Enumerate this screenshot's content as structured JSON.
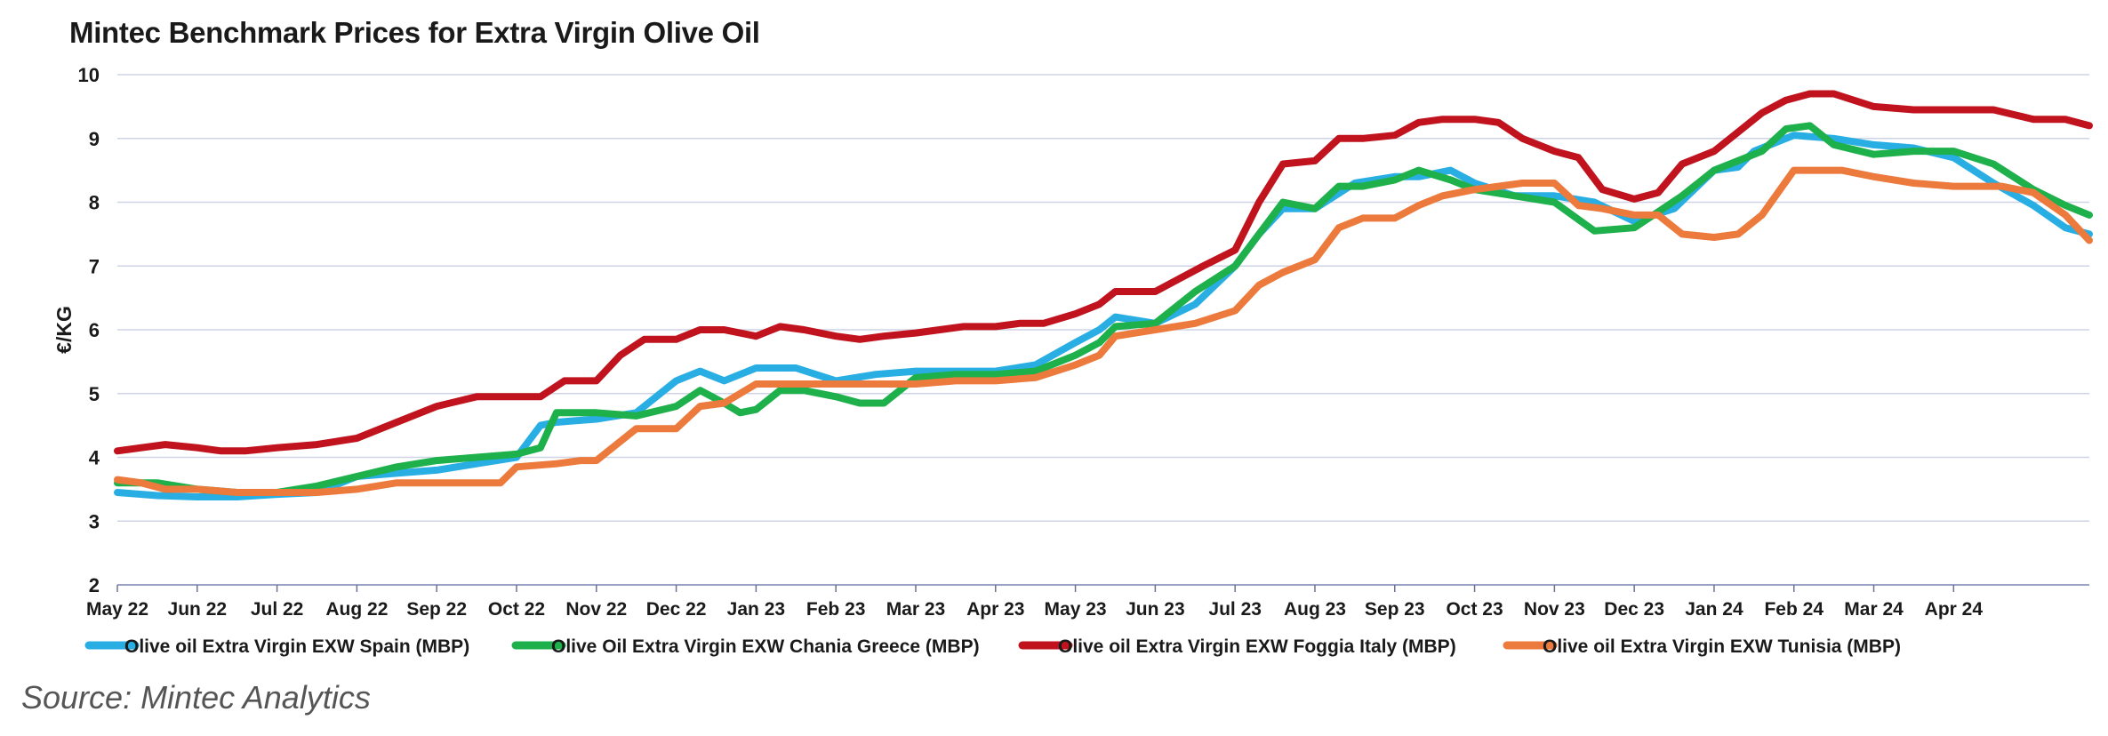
{
  "chart_data": {
    "type": "line",
    "title": "Mintec Benchmark Prices for Extra Virgin Olive Oil",
    "ylabel": "€/KG",
    "xlabel": "",
    "ylim": [
      2,
      10
    ],
    "yticks": [
      2,
      3,
      4,
      5,
      6,
      7,
      8,
      9,
      10
    ],
    "x_ticks": [
      "May 22",
      "Jun 22",
      "Jul 22",
      "Aug 22",
      "Sep 22",
      "Oct 22",
      "Nov 22",
      "Dec 22",
      "Jan 23",
      "Feb 23",
      "Mar 23",
      "Apr 23",
      "May 23",
      "Jun 23",
      "Jul 23",
      "Aug 23",
      "Sep 23",
      "Oct 23",
      "Nov 23",
      "Dec 23",
      "Jan 24",
      "Feb 24",
      "Mar 24",
      "Apr 24"
    ],
    "x_range": [
      0,
      24.7
    ],
    "grid": true,
    "legend_position": "bottom",
    "series": [
      {
        "name": "Olive oil Extra Virgin EXW Spain (MBP)",
        "color": "#29aee3",
        "x": [
          0,
          0.5,
          1,
          1.5,
          2,
          2.5,
          3,
          3.5,
          4,
          4.5,
          5,
          5.3,
          5.5,
          6,
          6.5,
          7,
          7.3,
          7.6,
          8,
          8.5,
          9,
          9.5,
          10,
          10.5,
          11,
          11.5,
          12,
          12.3,
          12.5,
          13,
          13.5,
          14,
          14.3,
          14.6,
          15,
          15.5,
          16,
          16.3,
          16.7,
          17,
          17.5,
          18,
          18.5,
          19,
          19.5,
          20,
          20.3,
          20.5,
          21,
          21.5,
          22,
          22.5,
          23,
          23.5,
          24,
          24.4,
          24.7
        ],
        "y": [
          3.45,
          3.4,
          3.38,
          3.38,
          3.42,
          3.45,
          3.7,
          3.75,
          3.8,
          3.9,
          4.0,
          4.5,
          4.55,
          4.6,
          4.7,
          5.2,
          5.35,
          5.2,
          5.4,
          5.4,
          5.2,
          5.3,
          5.35,
          5.35,
          5.35,
          5.45,
          5.8,
          6.0,
          6.2,
          6.1,
          6.4,
          7.0,
          7.5,
          7.9,
          7.9,
          8.3,
          8.4,
          8.4,
          8.5,
          8.3,
          8.1,
          8.1,
          8.0,
          7.7,
          7.9,
          8.5,
          8.55,
          8.8,
          9.05,
          9.0,
          8.9,
          8.85,
          8.7,
          8.3,
          7.95,
          7.6,
          7.5
        ]
      },
      {
        "name": "Olive Oil Extra Virgin EXW Chania Greece (MBP)",
        "color": "#1db04b",
        "x": [
          0,
          0.5,
          1,
          1.5,
          2,
          2.5,
          3,
          3.5,
          4,
          4.5,
          5,
          5.3,
          5.5,
          6,
          6.5,
          7,
          7.3,
          7.6,
          7.8,
          8,
          8.3,
          8.6,
          9,
          9.3,
          9.6,
          10,
          10.5,
          11,
          11.5,
          12,
          12.3,
          12.5,
          13,
          13.5,
          14,
          14.3,
          14.6,
          15,
          15.3,
          15.6,
          16,
          16.3,
          16.7,
          17,
          17.5,
          18,
          18.5,
          19,
          19.3,
          19.6,
          20,
          20.3,
          20.6,
          20.9,
          21.2,
          21.5,
          22,
          22.5,
          23,
          23.5,
          24,
          24.4,
          24.7
        ],
        "y": [
          3.6,
          3.6,
          3.5,
          3.45,
          3.45,
          3.55,
          3.7,
          3.85,
          3.95,
          4.0,
          4.05,
          4.15,
          4.7,
          4.7,
          4.65,
          4.8,
          5.05,
          4.85,
          4.7,
          4.75,
          5.05,
          5.05,
          4.95,
          4.85,
          4.85,
          5.25,
          5.3,
          5.3,
          5.35,
          5.6,
          5.8,
          6.05,
          6.1,
          6.6,
          7.0,
          7.5,
          8.0,
          7.9,
          8.25,
          8.25,
          8.35,
          8.5,
          8.35,
          8.2,
          8.1,
          8.0,
          7.55,
          7.6,
          7.85,
          8.1,
          8.5,
          8.65,
          8.8,
          9.15,
          9.2,
          8.9,
          8.75,
          8.8,
          8.8,
          8.6,
          8.2,
          7.95,
          7.8
        ]
      },
      {
        "name": "Olive oil Extra Virgin EXW Foggia Italy (MBP)",
        "color": "#c0131e",
        "x": [
          0,
          0.3,
          0.6,
          1,
          1.3,
          1.6,
          2,
          2.5,
          3,
          3.5,
          4,
          4.5,
          5,
          5.3,
          5.6,
          6,
          6.3,
          6.6,
          7,
          7.3,
          7.6,
          8,
          8.3,
          8.6,
          9,
          9.3,
          9.6,
          10,
          10.3,
          10.6,
          11,
          11.3,
          11.6,
          12,
          12.3,
          12.5,
          12.8,
          13,
          13.3,
          13.6,
          14,
          14.3,
          14.6,
          15,
          15.3,
          15.6,
          16,
          16.3,
          16.6,
          17,
          17.3,
          17.6,
          18,
          18.3,
          18.6,
          19,
          19.3,
          19.6,
          20,
          20.3,
          20.6,
          20.9,
          21.2,
          21.5,
          22,
          22.5,
          23,
          23.5,
          24,
          24.4,
          24.7
        ],
        "y": [
          4.1,
          4.15,
          4.2,
          4.15,
          4.1,
          4.1,
          4.15,
          4.2,
          4.3,
          4.55,
          4.8,
          4.95,
          4.95,
          4.95,
          5.2,
          5.2,
          5.6,
          5.85,
          5.85,
          6.0,
          6.0,
          5.9,
          6.05,
          6.0,
          5.9,
          5.85,
          5.9,
          5.95,
          6.0,
          6.05,
          6.05,
          6.1,
          6.1,
          6.25,
          6.4,
          6.6,
          6.6,
          6.6,
          6.8,
          7.0,
          7.25,
          8.0,
          8.6,
          8.65,
          9.0,
          9.0,
          9.05,
          9.25,
          9.3,
          9.3,
          9.25,
          9.0,
          8.8,
          8.7,
          8.2,
          8.05,
          8.15,
          8.6,
          8.8,
          9.1,
          9.4,
          9.6,
          9.7,
          9.7,
          9.5,
          9.45,
          9.45,
          9.45,
          9.3,
          9.3,
          9.2
        ]
      },
      {
        "name": "Olive oil Extra Virgin EXW Tunisia (MBP)",
        "color": "#ec7a3c",
        "x": [
          0,
          0.3,
          0.6,
          1,
          1.5,
          2,
          2.5,
          3,
          3.5,
          4,
          4.5,
          4.8,
          5,
          5.5,
          5.8,
          6,
          6.5,
          7,
          7.3,
          7.6,
          8,
          8.5,
          9,
          9.5,
          10,
          10.5,
          11,
          11.5,
          12,
          12.3,
          12.5,
          13,
          13.5,
          14,
          14.3,
          14.6,
          15,
          15.3,
          15.6,
          16,
          16.3,
          16.6,
          17,
          17.3,
          17.6,
          18,
          18.3,
          18.6,
          19,
          19.3,
          19.6,
          20,
          20.3,
          20.6,
          21,
          21.3,
          21.6,
          22,
          22.5,
          23,
          23.3,
          23.6,
          24,
          24.4,
          24.7
        ],
        "y": [
          3.65,
          3.6,
          3.5,
          3.5,
          3.45,
          3.45,
          3.45,
          3.5,
          3.6,
          3.6,
          3.6,
          3.6,
          3.85,
          3.9,
          3.95,
          3.95,
          4.45,
          4.45,
          4.8,
          4.85,
          5.15,
          5.15,
          5.15,
          5.15,
          5.15,
          5.2,
          5.2,
          5.25,
          5.45,
          5.6,
          5.9,
          6.0,
          6.1,
          6.3,
          6.7,
          6.9,
          7.1,
          7.6,
          7.75,
          7.75,
          7.95,
          8.1,
          8.2,
          8.25,
          8.3,
          8.3,
          7.95,
          7.9,
          7.8,
          7.8,
          7.5,
          7.45,
          7.5,
          7.8,
          8.5,
          8.5,
          8.5,
          8.4,
          8.3,
          8.25,
          8.25,
          8.25,
          8.15,
          7.8,
          7.4
        ]
      }
    ]
  },
  "source": "Source: Mintec Analytics"
}
